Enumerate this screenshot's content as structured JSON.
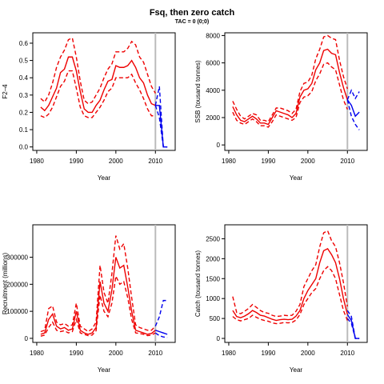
{
  "page": {
    "title": "Fsq, then zero catch",
    "subtitle": "TAC = 0 (0;0)"
  },
  "colors": {
    "historical": "#ee0000",
    "projection": "#0000ee",
    "divider": "#bbbbbb"
  },
  "chart_data": [
    {
      "id": "F",
      "type": "line",
      "xlabel": "Year",
      "ylabel": "F2–4",
      "xlim": [
        1979,
        2015
      ],
      "ylim": [
        -0.02,
        0.66
      ],
      "xticks": [
        1980,
        1990,
        2000,
        2010
      ],
      "yticks": [
        0.0,
        0.1,
        0.2,
        0.3,
        0.4,
        0.5,
        0.6
      ],
      "ytick_labels": [
        "0.0",
        "0.1",
        "0.2",
        "0.3",
        "0.4",
        "0.5",
        "0.6"
      ],
      "vline": 2010,
      "x_hist": [
        1981,
        1982,
        1983,
        1984,
        1985,
        1986,
        1987,
        1988,
        1989,
        1990,
        1991,
        1992,
        1993,
        1994,
        1995,
        1996,
        1997,
        1998,
        1999,
        2000,
        2001,
        2002,
        2003,
        2004,
        2005,
        2006,
        2007,
        2008,
        2009,
        2010
      ],
      "series": [
        {
          "role": "estimate",
          "values": [
            0.23,
            0.21,
            0.24,
            0.29,
            0.34,
            0.43,
            0.45,
            0.52,
            0.52,
            0.44,
            0.32,
            0.22,
            0.2,
            0.2,
            0.24,
            0.27,
            0.33,
            0.38,
            0.39,
            0.47,
            0.46,
            0.46,
            0.47,
            0.5,
            0.46,
            0.4,
            0.37,
            0.3,
            0.25,
            0.24
          ]
        },
        {
          "role": "upper",
          "values": [
            0.28,
            0.26,
            0.3,
            0.37,
            0.46,
            0.52,
            0.56,
            0.62,
            0.63,
            0.52,
            0.38,
            0.27,
            0.25,
            0.26,
            0.3,
            0.34,
            0.4,
            0.45,
            0.48,
            0.55,
            0.55,
            0.55,
            0.57,
            0.61,
            0.59,
            0.52,
            0.49,
            0.42,
            0.35,
            0.31
          ]
        },
        {
          "role": "lower",
          "values": [
            0.18,
            0.17,
            0.19,
            0.23,
            0.29,
            0.35,
            0.38,
            0.44,
            0.44,
            0.34,
            0.23,
            0.18,
            0.17,
            0.17,
            0.2,
            0.23,
            0.27,
            0.32,
            0.34,
            0.4,
            0.4,
            0.4,
            0.4,
            0.42,
            0.37,
            0.33,
            0.28,
            0.22,
            0.18,
            0.18
          ]
        }
      ],
      "x_proj": [
        2010,
        2011,
        2012,
        2013
      ],
      "projection": [
        {
          "role": "estimate",
          "values": [
            0.24,
            0.24,
            0.0,
            0.0
          ]
        },
        {
          "role": "upper",
          "values": [
            0.24,
            0.35,
            0.0,
            0.0
          ]
        },
        {
          "role": "lower",
          "values": [
            0.24,
            0.17,
            0.0,
            0.0
          ]
        }
      ]
    },
    {
      "id": "SSB",
      "type": "line",
      "xlabel": "Year",
      "ylabel": "SSB (tousand tonnes)",
      "xlim": [
        1979,
        2015
      ],
      "ylim": [
        -400,
        8200
      ],
      "xticks": [
        1980,
        1990,
        2000,
        2010
      ],
      "yticks": [
        0,
        2000,
        4000,
        6000,
        8000
      ],
      "ytick_labels": [
        "0",
        "2000",
        "4000",
        "6000",
        "8000"
      ],
      "vline": 2010,
      "x_hist": [
        1981,
        1982,
        1983,
        1984,
        1985,
        1986,
        1987,
        1988,
        1989,
        1990,
        1991,
        1992,
        1993,
        1994,
        1995,
        1996,
        1997,
        1998,
        1999,
        2000,
        2001,
        2002,
        2003,
        2004,
        2005,
        2006,
        2007,
        2008,
        2009,
        2010
      ],
      "series": [
        {
          "role": "estimate",
          "values": [
            2800,
            2200,
            1800,
            1700,
            1900,
            2100,
            1900,
            1600,
            1600,
            1500,
            2000,
            2500,
            2400,
            2300,
            2200,
            2000,
            2300,
            3500,
            4000,
            4100,
            4500,
            5500,
            6000,
            6900,
            7000,
            6700,
            6600,
            5300,
            4200,
            3300
          ]
        },
        {
          "role": "upper",
          "values": [
            3200,
            2600,
            2100,
            1900,
            2100,
            2300,
            2200,
            1800,
            1800,
            1700,
            2200,
            2700,
            2700,
            2600,
            2500,
            2300,
            2600,
            3900,
            4500,
            4600,
            5100,
            6300,
            7000,
            7900,
            8000,
            7800,
            7700,
            6200,
            5000,
            4100
          ]
        },
        {
          "role": "lower",
          "values": [
            2400,
            1800,
            1600,
            1500,
            1700,
            1900,
            1700,
            1400,
            1400,
            1300,
            1700,
            2200,
            2100,
            2000,
            1900,
            1800,
            2000,
            3100,
            3500,
            3600,
            3900,
            4700,
            5200,
            5900,
            6000,
            5700,
            5500,
            4400,
            3300,
            2600
          ]
        }
      ],
      "x_proj": [
        2010,
        2011,
        2012,
        2013
      ],
      "projection": [
        {
          "role": "estimate",
          "values": [
            3300,
            2900,
            2100,
            2400
          ]
        },
        {
          "role": "upper",
          "values": [
            3300,
            4000,
            3400,
            3900
          ]
        },
        {
          "role": "lower",
          "values": [
            3300,
            2100,
            1500,
            1100
          ]
        }
      ]
    },
    {
      "id": "Recruitment",
      "type": "line",
      "xlabel": "Year",
      "ylabel": "Recruitment (millions)",
      "xlim": [
        1979,
        2015
      ],
      "ylim": [
        -15000,
        420000
      ],
      "xticks": [
        1980,
        1990,
        2000,
        2010
      ],
      "yticks": [
        0,
        100000,
        200000,
        300000
      ],
      "ytick_labels": [
        "0",
        "100000",
        "200000",
        "300000"
      ],
      "vline": 2010,
      "x_hist": [
        1981,
        1982,
        1983,
        1984,
        1985,
        1986,
        1987,
        1988,
        1989,
        1990,
        1991,
        1992,
        1993,
        1994,
        1995,
        1996,
        1997,
        1998,
        1999,
        2000,
        2001,
        2002,
        2003,
        2004,
        2005,
        2006,
        2007,
        2008,
        2009,
        2010
      ],
      "series": [
        {
          "role": "estimate",
          "values": [
            15000,
            20000,
            70000,
            90000,
            45000,
            35000,
            40000,
            30000,
            35000,
            100000,
            30000,
            20000,
            15000,
            20000,
            40000,
            210000,
            130000,
            100000,
            180000,
            300000,
            260000,
            270000,
            190000,
            100000,
            30000,
            25000,
            20000,
            15000,
            18000,
            30000
          ]
        },
        {
          "role": "upper",
          "values": [
            25000,
            30000,
            110000,
            120000,
            60000,
            50000,
            55000,
            45000,
            50000,
            130000,
            45000,
            35000,
            25000,
            35000,
            60000,
            270000,
            170000,
            130000,
            240000,
            380000,
            330000,
            350000,
            260000,
            150000,
            50000,
            40000,
            35000,
            30000,
            30000,
            45000
          ]
        },
        {
          "role": "lower",
          "values": [
            8000,
            12000,
            40000,
            60000,
            30000,
            25000,
            28000,
            20000,
            25000,
            70000,
            20000,
            15000,
            10000,
            12000,
            28000,
            160000,
            100000,
            80000,
            130000,
            230000,
            200000,
            210000,
            150000,
            70000,
            20000,
            18000,
            15000,
            10000,
            12000,
            20000
          ]
        }
      ],
      "x_proj": [
        2010,
        2011,
        2012,
        2013
      ],
      "projection": [
        {
          "role": "estimate",
          "values": [
            30000,
            25000,
            20000,
            15000
          ]
        },
        {
          "role": "upper",
          "values": [
            45000,
            80000,
            140000,
            140000
          ]
        },
        {
          "role": "lower",
          "values": [
            20000,
            10000,
            5000,
            3000
          ]
        }
      ]
    },
    {
      "id": "Catch",
      "type": "line",
      "xlabel": "Year",
      "ylabel": "Catch (tousand tonnes)",
      "xlim": [
        1979,
        2015
      ],
      "ylim": [
        -100,
        2850
      ],
      "xticks": [
        1980,
        1990,
        2000,
        2010
      ],
      "yticks": [
        0,
        500,
        1000,
        1500,
        2000,
        2500
      ],
      "ytick_labels": [
        "0",
        "500",
        "1000",
        "1500",
        "2000",
        "2500"
      ],
      "vline": 2010,
      "x_hist": [
        1981,
        1982,
        1983,
        1984,
        1985,
        1986,
        1987,
        1988,
        1989,
        1990,
        1991,
        1992,
        1993,
        1994,
        1995,
        1996,
        1997,
        1998,
        1999,
        2000,
        2001,
        2002,
        2003,
        2004,
        2005,
        2006,
        2007,
        2008,
        2009,
        2010
      ],
      "series": [
        {
          "role": "estimate",
          "values": [
            700,
            550,
            520,
            560,
            620,
            700,
            650,
            580,
            560,
            520,
            480,
            450,
            470,
            480,
            470,
            480,
            560,
            700,
            1000,
            1200,
            1350,
            1500,
            1900,
            2200,
            2250,
            2100,
            1900,
            1500,
            1000,
            600
          ]
        },
        {
          "role": "upper",
          "values": [
            1050,
            650,
            620,
            680,
            750,
            850,
            780,
            700,
            650,
            630,
            580,
            550,
            560,
            580,
            570,
            580,
            680,
            850,
            1300,
            1500,
            1700,
            1850,
            2300,
            2650,
            2700,
            2450,
            2300,
            1900,
            1400,
            800
          ]
        },
        {
          "role": "lower",
          "values": [
            550,
            470,
            440,
            470,
            500,
            580,
            530,
            480,
            450,
            430,
            390,
            370,
            380,
            400,
            390,
            400,
            460,
            600,
            850,
            1000,
            1150,
            1250,
            1500,
            1700,
            1800,
            1700,
            1500,
            1100,
            700,
            450
          ]
        }
      ],
      "x_proj": [
        2010,
        2011,
        2012,
        2013
      ],
      "projection": [
        {
          "role": "estimate",
          "values": [
            600,
            450,
            0,
            0
          ]
        },
        {
          "role": "upper",
          "values": [
            700,
            550,
            0,
            0
          ]
        },
        {
          "role": "lower",
          "values": [
            500,
            380,
            0,
            0
          ]
        }
      ]
    }
  ]
}
